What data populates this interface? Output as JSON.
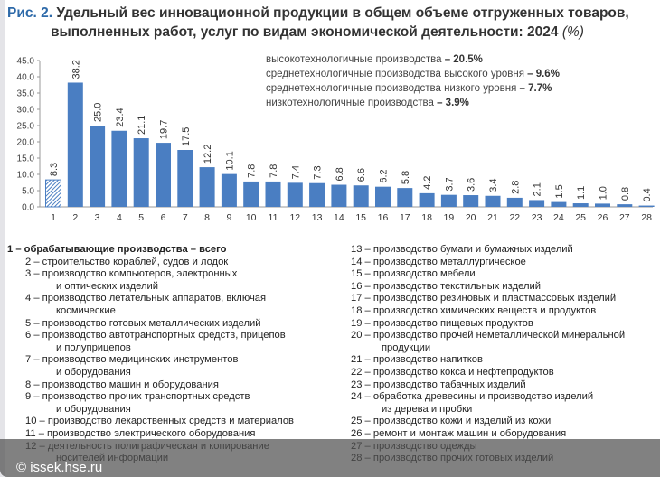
{
  "title": {
    "prefix": "Рис. 2.",
    "line1": "Удельный вес инновационной продукции в общем объеме отгруженных товаров,",
    "line2": "выполненных работ, услуг по видам экономической деятельности: 2024",
    "unit": "(%)"
  },
  "groups": [
    {
      "label": "высокотехнологичные производства",
      "value": "– 20.5%"
    },
    {
      "label": "среднетехнологичные производства высокого уровня",
      "value": "– 9.6%"
    },
    {
      "label": "среднетехнологичные производства низкого уровня",
      "value": "– 7.7%"
    },
    {
      "label": "низкотехнологичные производства",
      "value": "– 3.9%"
    }
  ],
  "chart_data": {
    "type": "bar",
    "categories": [
      "1",
      "2",
      "3",
      "4",
      "5",
      "6",
      "7",
      "8",
      "9",
      "10",
      "11",
      "12",
      "13",
      "14",
      "15",
      "16",
      "17",
      "18",
      "19",
      "20",
      "21",
      "22",
      "23",
      "24",
      "25",
      "26",
      "27",
      "28"
    ],
    "values": [
      8.3,
      38.2,
      25.0,
      23.4,
      21.1,
      19.7,
      17.5,
      12.2,
      10.1,
      7.8,
      7.8,
      7.4,
      7.3,
      6.8,
      6.6,
      6.2,
      5.8,
      4.2,
      3.7,
      3.6,
      3.4,
      2.8,
      2.1,
      1.5,
      1.1,
      1.0,
      0.8,
      0.4
    ],
    "value_labels": [
      "8.3",
      "38.2",
      "25.0",
      "23.4",
      "21.1",
      "19.7",
      "17.5",
      "12.2",
      "10.1",
      "7.8",
      "7.8",
      "7.4",
      "7.3",
      "6.8",
      "6.6",
      "6.2",
      "5.8",
      "4.2",
      "3.7",
      "3.6",
      "3.4",
      "2.8",
      "2.1",
      "1.5",
      "1.1",
      "1.0",
      "0.8",
      "0.4"
    ],
    "yticks": [
      "0.0",
      "5.0",
      "10.0",
      "15.0",
      "20.0",
      "25.0",
      "30.0",
      "35.0",
      "40.0",
      "45.0"
    ],
    "ylim": [
      0,
      45
    ],
    "highlight_first": "hatched",
    "color": "#4a7ec2"
  },
  "legend_left": [
    {
      "bold": true,
      "lines": [
        "1 – обрабатывающие производства – всего"
      ]
    },
    {
      "lines": [
        "2 – строительство кораблей, судов и лодок"
      ]
    },
    {
      "lines": [
        "3 – производство компьютеров, электронных",
        "и оптических изделий"
      ]
    },
    {
      "lines": [
        "4 – производство летательных аппаратов, включая",
        "космические"
      ]
    },
    {
      "lines": [
        "5 – производство готовых металлических изделий"
      ]
    },
    {
      "lines": [
        "6 – производство автотранспортных средств, прицепов",
        "и полуприцепов"
      ]
    },
    {
      "lines": [
        "7 – производство медицинских инструментов",
        "и оборудования"
      ]
    },
    {
      "lines": [
        "8 – производство машин и оборудования"
      ]
    },
    {
      "lines": [
        "9 – производство прочих транспортных средств",
        "и оборудования"
      ]
    },
    {
      "lines": [
        "10 – производство лекарственных средств и материалов"
      ]
    },
    {
      "lines": [
        "11 – производство электрического оборудования"
      ]
    },
    {
      "lines": [
        "12 – деятельность полиграфическая и копирование",
        "носителей информации"
      ]
    }
  ],
  "legend_right": [
    {
      "lines": [
        "13 – производство бумаги и бумажных изделий"
      ]
    },
    {
      "lines": [
        "14 – производство металлургическое"
      ]
    },
    {
      "lines": [
        "15 – производство мебели"
      ]
    },
    {
      "lines": [
        "16 – производство текстильных изделий"
      ]
    },
    {
      "lines": [
        "17 – производство резиновых и пластмассовых изделий"
      ]
    },
    {
      "lines": [
        "18 – производство химических веществ и продуктов"
      ]
    },
    {
      "lines": [
        "19 – производство пищевых продуктов"
      ]
    },
    {
      "lines": [
        "20 – производство прочей неметаллической минеральной",
        "продукции"
      ]
    },
    {
      "lines": [
        "21 – производство напитков"
      ]
    },
    {
      "lines": [
        "22 – производство кокса и нефтепродуктов"
      ]
    },
    {
      "lines": [
        "23 – производство табачных изделий"
      ]
    },
    {
      "lines": [
        "24 – обработка древесины и производство изделий",
        "из дерева и пробки"
      ]
    },
    {
      "lines": [
        "25 – производство кожи и изделий из кожи"
      ]
    },
    {
      "lines": [
        "26 – ремонт и монтаж машин и оборудования"
      ]
    },
    {
      "lines": [
        "27 – производство одежды"
      ]
    },
    {
      "lines": [
        "28 – производство прочих готовых изделий"
      ]
    }
  ],
  "watermark": "© issek.hse.ru"
}
